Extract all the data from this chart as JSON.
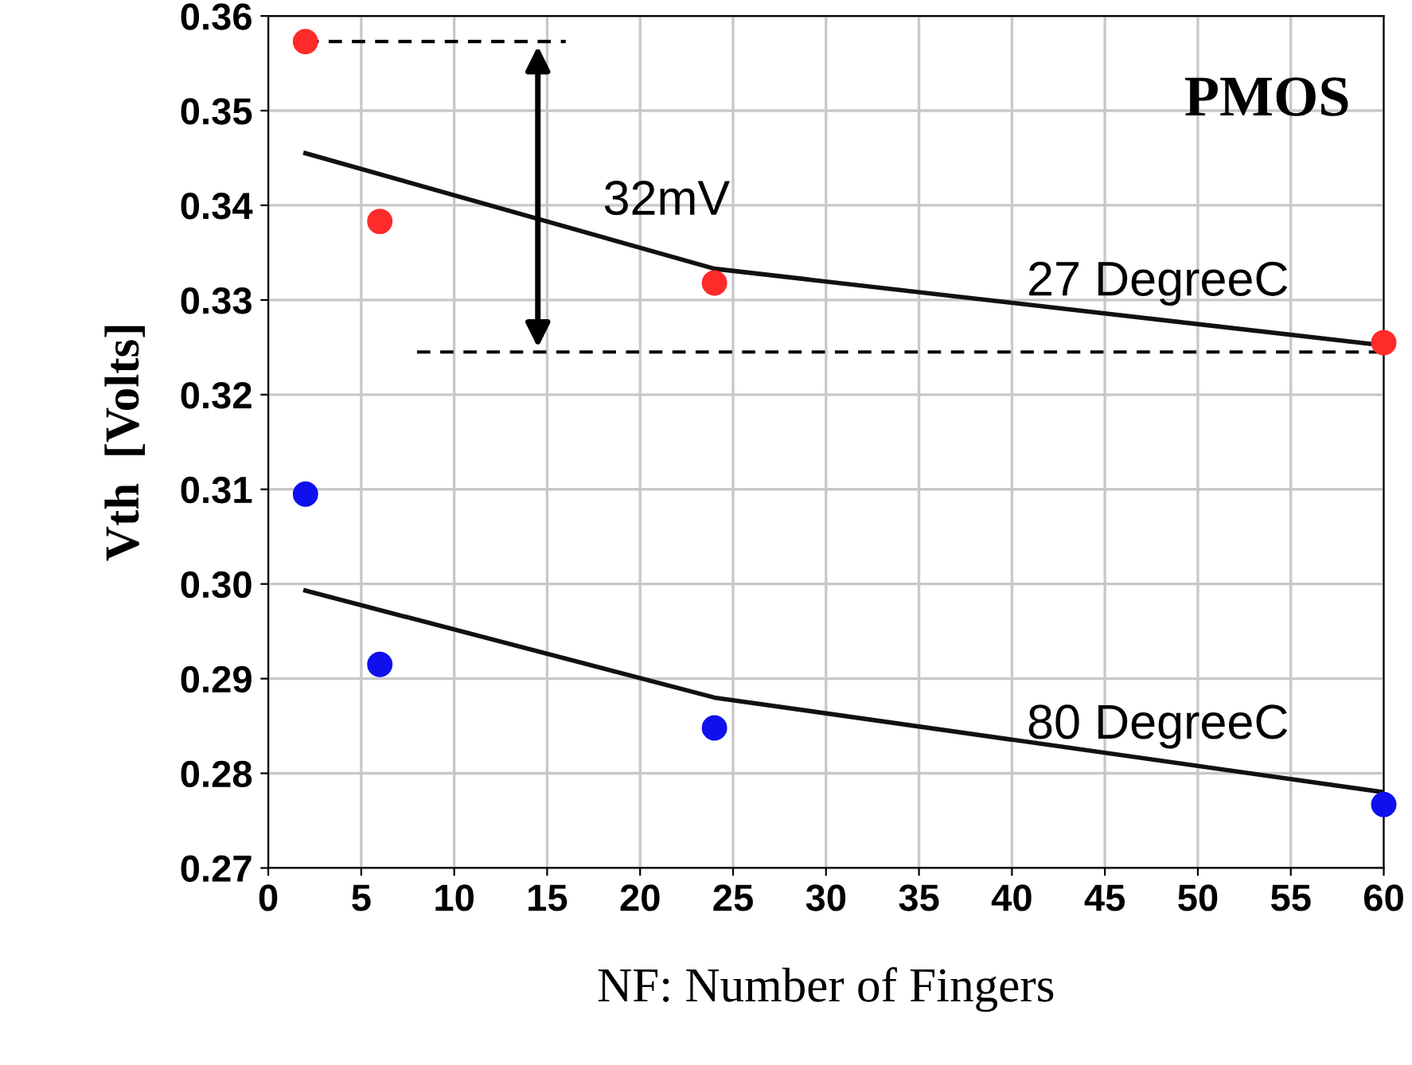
{
  "chart_data": {
    "type": "scatter",
    "xlabel": "NF: Number of Fingers",
    "ylabel": "Vth  [Volts]",
    "x": [
      2,
      6,
      24,
      60
    ],
    "series": [
      {
        "color": "#ff2a2a",
        "values": [
          0.3573,
          0.3383,
          0.3318,
          0.3255
        ]
      },
      {
        "color": "#1010ee",
        "values": [
          0.3095,
          0.2915,
          0.2848,
          0.2767
        ]
      },
      {
        "type": "line",
        "color": "#111111",
        "x": [
          2,
          24,
          60
        ],
        "values": [
          0.3455,
          0.3333,
          0.3252
        ],
        "marker": "none",
        "line_style": "solid"
      },
      {
        "type": "line",
        "color": "#111111",
        "x": [
          2,
          24,
          60
        ],
        "values": [
          0.2993,
          0.288,
          0.278
        ],
        "marker": "none",
        "line_style": "solid"
      },
      {
        "type": "line",
        "color": "#000000",
        "x": [
          2,
          16
        ],
        "values": [
          0.3573,
          0.3573
        ],
        "marker": "none",
        "line_style": "dashed"
      },
      {
        "type": "line",
        "color": "#000000",
        "x": [
          8,
          60
        ],
        "values": [
          0.3245,
          0.3245
        ],
        "marker": "none",
        "line_style": "dashed"
      }
    ],
    "annotations": [
      "PMOS",
      "32mV",
      "27 DegreeC",
      "80 DegreeC"
    ],
    "xlim": [
      0,
      60
    ],
    "ylim": [
      0.27,
      0.36
    ],
    "xticks": [
      0,
      5,
      10,
      15,
      20,
      25,
      30,
      35,
      40,
      45,
      50,
      55,
      60
    ],
    "yticks": [
      {
        "value": 0.27,
        "label": "0.27"
      },
      {
        "value": 0.28,
        "label": "0.28"
      },
      {
        "value": 0.29,
        "label": "0.29"
      },
      {
        "value": 0.3,
        "label": "0.30"
      },
      {
        "value": 0.31,
        "label": "0.31"
      },
      {
        "value": 0.32,
        "label": "0.32"
      },
      {
        "value": 0.33,
        "label": "0.33"
      },
      {
        "value": 0.34,
        "label": "0.34"
      },
      {
        "value": 0.35,
        "label": "0.35"
      },
      {
        "value": 0.36,
        "label": "0.36"
      }
    ],
    "grid": true,
    "marker": "circle",
    "legend": false
  }
}
